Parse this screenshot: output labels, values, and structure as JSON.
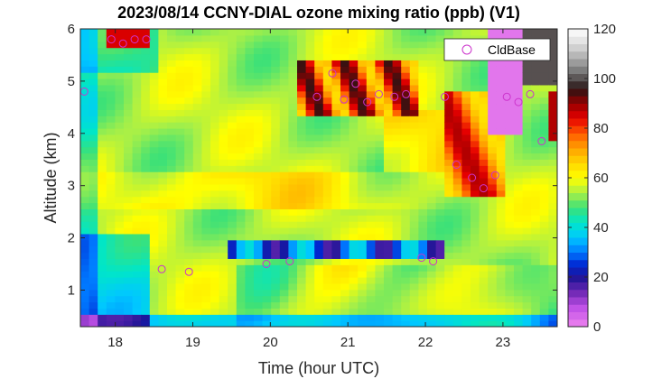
{
  "chart_data": {
    "type": "heatmap",
    "title": "2023/08/14 CCNY-DIAL ozone mixing ratio (ppb) (V1)",
    "xlabel": "Time (hour UTC)",
    "ylabel": "Altitude (km)",
    "xlim": [
      17.55,
      23.7
    ],
    "ylim": [
      0.3,
      6.0
    ],
    "x_ticks": [
      18,
      19,
      20,
      21,
      22,
      23
    ],
    "y_ticks": [
      1,
      2,
      3,
      4,
      5,
      6
    ],
    "colorbar": {
      "min": 0,
      "max": 120,
      "ticks": [
        0,
        20,
        40,
        60,
        80,
        100,
        120
      ],
      "colormap": "custom-rainbow (magenta-purple-blue-cyan-green-yellow-orange-red-black-gray-white)"
    },
    "legend": {
      "placement": "top-right",
      "entries": [
        {
          "label": "CldBase",
          "marker": "circle",
          "color": "#cc33cc"
        }
      ]
    },
    "cloud_base": [
      [
        17.6,
        4.8
      ],
      [
        17.95,
        5.8
      ],
      [
        18.1,
        5.72
      ],
      [
        18.25,
        5.8
      ],
      [
        18.4,
        5.8
      ],
      [
        18.6,
        1.4
      ],
      [
        18.95,
        1.35
      ],
      [
        19.95,
        1.5
      ],
      [
        20.25,
        1.55
      ],
      [
        20.6,
        4.7
      ],
      [
        20.8,
        5.15
      ],
      [
        20.95,
        4.65
      ],
      [
        21.1,
        4.95
      ],
      [
        21.25,
        4.6
      ],
      [
        21.4,
        4.75
      ],
      [
        21.6,
        4.7
      ],
      [
        21.75,
        4.75
      ],
      [
        21.95,
        1.62
      ],
      [
        22.1,
        1.55
      ],
      [
        22.25,
        4.7
      ],
      [
        22.4,
        3.4
      ],
      [
        22.6,
        3.15
      ],
      [
        22.75,
        2.95
      ],
      [
        22.9,
        3.2
      ],
      [
        23.05,
        4.7
      ],
      [
        23.2,
        4.6
      ],
      [
        23.35,
        4.75
      ],
      [
        23.5,
        3.85
      ]
    ]
  }
}
